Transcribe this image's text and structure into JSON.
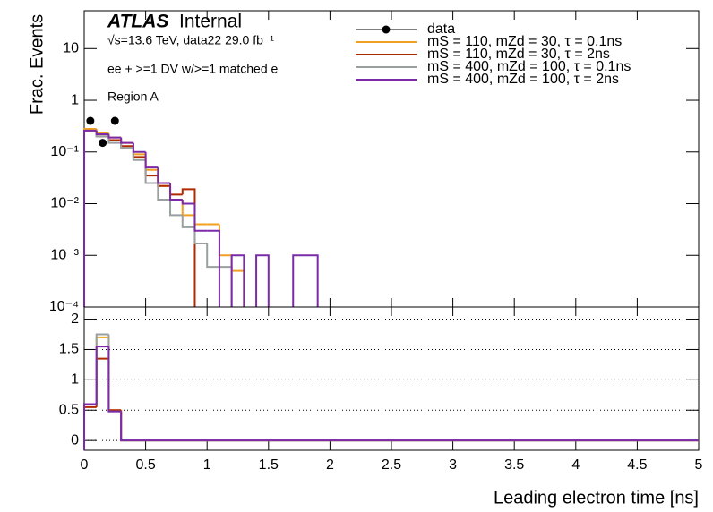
{
  "chart_data": [
    {
      "type": "histogram",
      "title": "ATLAS",
      "subtitle": "Internal",
      "annotations": [
        "√s=13.6 TeV, data22 29.0 fb⁻¹",
        "ee + >=1 DV w/>=1 matched e",
        "Region A"
      ],
      "ylabel": "Frac. Events",
      "log_y": true,
      "ylim": [
        0.0001,
        54
      ],
      "yticks": [
        {
          "value": 0.0001,
          "label": "10⁻⁴"
        },
        {
          "value": 0.001,
          "label": "10⁻³"
        },
        {
          "value": 0.01,
          "label": "10⁻²"
        },
        {
          "value": 0.1,
          "label": "10⁻¹"
        },
        1,
        10
      ],
      "xlim": [
        0,
        5
      ],
      "bins": [
        0,
        0.1,
        0.2,
        0.3,
        0.4,
        0.5,
        0.6,
        0.7,
        0.8,
        0.9,
        1.0,
        1.1,
        1.2,
        1.3,
        1.4,
        1.5,
        1.6,
        1.7,
        1.8,
        1.9,
        2.0
      ],
      "points": {
        "name": "data",
        "color": "#000000",
        "x": [
          0.05,
          0.15,
          0.25
        ],
        "values": [
          0.4,
          0.15,
          0.4
        ]
      },
      "series": [
        {
          "name": "mS = 110, mZd = 30, τ = 0.1ns",
          "color": "#f0a020",
          "values": [
            0.28,
            0.23,
            0.19,
            0.15,
            0.09,
            0.045,
            0.022,
            0.012,
            0.006,
            0.004,
            0.004,
            0.001,
            0.0005,
            null,
            null,
            null,
            null,
            null,
            null,
            null
          ]
        },
        {
          "name": "mS = 110, mZd = 30, τ = 2ns",
          "color": "#b02a00",
          "values": [
            0.25,
            0.2,
            0.17,
            0.13,
            0.08,
            0.035,
            0.022,
            0.015,
            0.019,
            null,
            null,
            null,
            null,
            null,
            null,
            null,
            null,
            null,
            null,
            null
          ]
        },
        {
          "name": "mS = 400, mZd = 100, τ = 0.1ns",
          "color": "#9aa0a0",
          "values": [
            0.25,
            0.2,
            0.15,
            0.12,
            0.07,
            0.025,
            0.012,
            0.006,
            0.0035,
            0.0017,
            0.0006,
            0.0006,
            null,
            null,
            null,
            null,
            null,
            null,
            null,
            null
          ]
        },
        {
          "name": "mS = 400, mZd = 100, τ = 2ns",
          "color": "#7b2aa8",
          "values": [
            0.26,
            0.22,
            0.19,
            0.15,
            0.1,
            0.05,
            0.025,
            0.012,
            0.01,
            0.003,
            0.003,
            null,
            0.001,
            null,
            0.001,
            null,
            null,
            0.001,
            0.001,
            null
          ]
        }
      ]
    },
    {
      "type": "histogram",
      "xlabel": "Leading electron time [ns]",
      "grid": true,
      "xlim": [
        0,
        5
      ],
      "xticks": [
        0,
        0.5,
        1,
        1.5,
        2,
        2.5,
        3,
        3.5,
        4,
        4.5,
        5
      ],
      "ylim": [
        -0.16,
        2.2
      ],
      "yticks": [
        0,
        0.5,
        1,
        1.5,
        2
      ],
      "bins": [
        0,
        0.1,
        0.2,
        0.3,
        5
      ],
      "series": [
        {
          "color": "#f0a020",
          "values": [
            0.6,
            1.7,
            0.5,
            0
          ]
        },
        {
          "color": "#b02a00",
          "values": [
            0.55,
            1.35,
            0.5,
            0
          ]
        },
        {
          "color": "#9aa0a0",
          "values": [
            0.6,
            1.75,
            0.48,
            0
          ]
        },
        {
          "color": "#7b2aa8",
          "values": [
            0.6,
            1.55,
            0.48,
            0
          ]
        }
      ]
    }
  ]
}
